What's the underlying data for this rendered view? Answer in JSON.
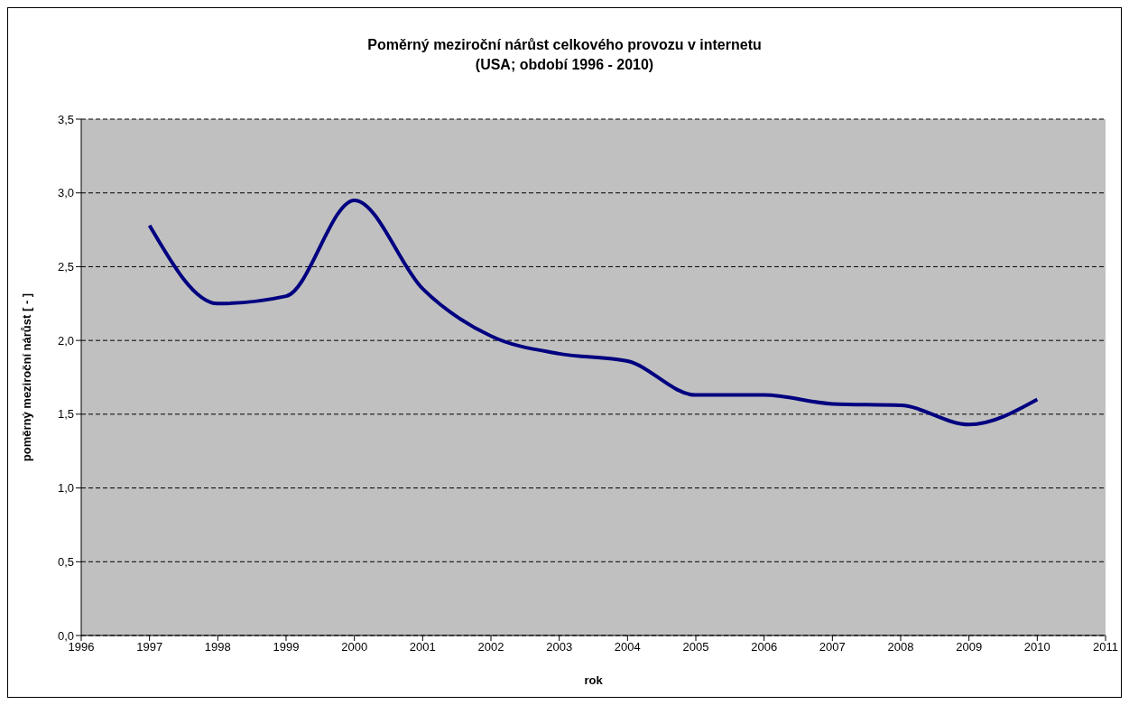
{
  "chart_data": {
    "type": "line",
    "title": "Poměrný meziroční nárůst celkového provozu v internetu",
    "subtitle": "(USA; období 1996 - 2010)",
    "xlabel": "rok",
    "ylabel": "poměrný meziroční nárůst [ - ]",
    "x": [
      1997,
      1998,
      1999,
      2000,
      2001,
      2002,
      2003,
      2004,
      2005,
      2006,
      2007,
      2008,
      2009,
      2010
    ],
    "series": [
      {
        "color": "#000080",
        "values": [
          2.78,
          2.25,
          2.3,
          2.95,
          2.35,
          2.03,
          1.91,
          1.86,
          1.63,
          1.63,
          1.57,
          1.56,
          1.43,
          1.6
        ]
      }
    ],
    "xlim": [
      1996,
      2011
    ],
    "xticks": [
      1996,
      1997,
      1998,
      1999,
      2000,
      2001,
      2002,
      2003,
      2004,
      2005,
      2006,
      2007,
      2008,
      2009,
      2010,
      2011
    ],
    "ylim": [
      0,
      3.5
    ],
    "yticks": [
      {
        "value": 0,
        "label": "0,0"
      },
      {
        "value": 0.5,
        "label": "0,5"
      },
      {
        "value": 1,
        "label": "1,0"
      },
      {
        "value": 1.5,
        "label": "1,5"
      },
      {
        "value": 2,
        "label": "2,0"
      },
      {
        "value": 2.5,
        "label": "2,5"
      },
      {
        "value": 3,
        "label": "3,0"
      },
      {
        "value": 3.5,
        "label": "3,5"
      }
    ],
    "grid": "y",
    "legend": false,
    "marker": "none",
    "line_style": "solid"
  }
}
